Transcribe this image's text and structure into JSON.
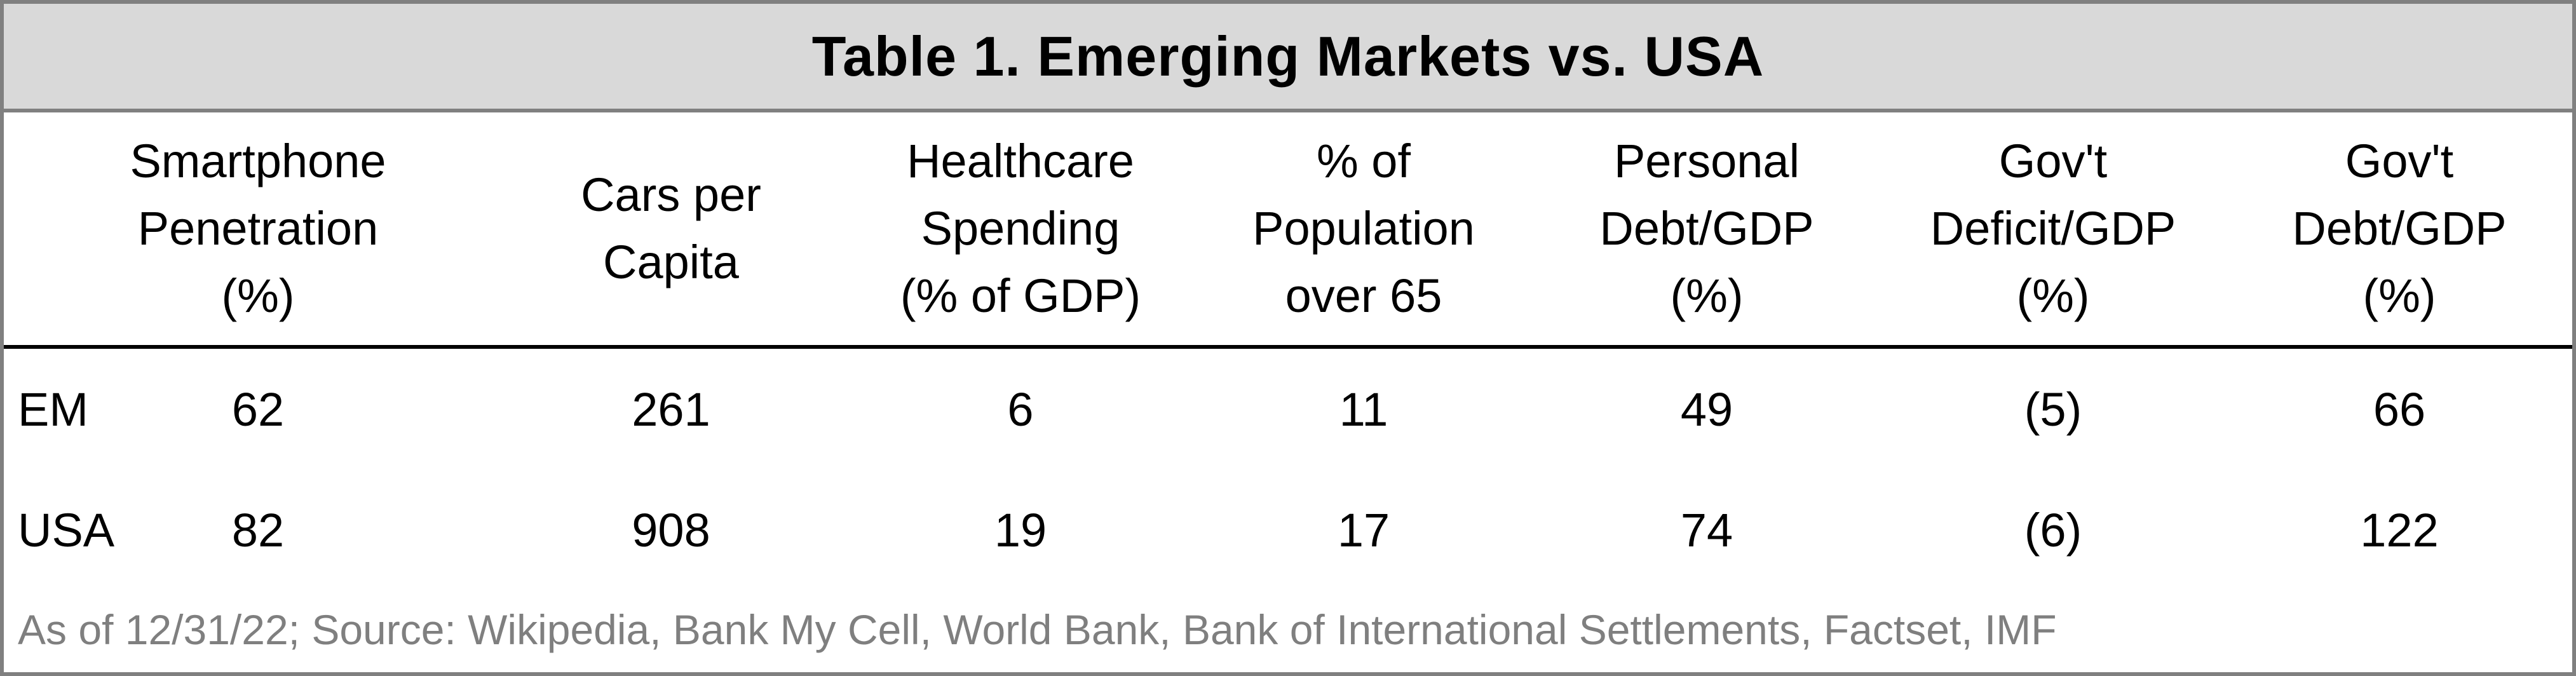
{
  "table": {
    "title": "Table 1. Emerging Markets vs. USA",
    "headers": [
      "Smartphone\nPenetration\n(%)",
      "Cars per\nCapita",
      "Healthcare\nSpending\n(% of GDP)",
      "% of\nPopulation\nover 65",
      "Personal\nDebt/GDP\n(%)",
      "Gov't\nDeficit/GDP\n(%)",
      "Gov't\nDebt/GDP\n(%)"
    ],
    "rows": [
      {
        "label": "EM",
        "values": [
          "62",
          "261",
          "6",
          "11",
          "49",
          "(5)",
          "66"
        ]
      },
      {
        "label": "USA",
        "values": [
          "82",
          "908",
          "19",
          "17",
          "74",
          "(6)",
          "122"
        ]
      }
    ],
    "footnote": "As of 12/31/22; Source: Wikipedia, Bank My Cell, World Bank, Bank of International Settlements, Factset, IMF"
  }
}
